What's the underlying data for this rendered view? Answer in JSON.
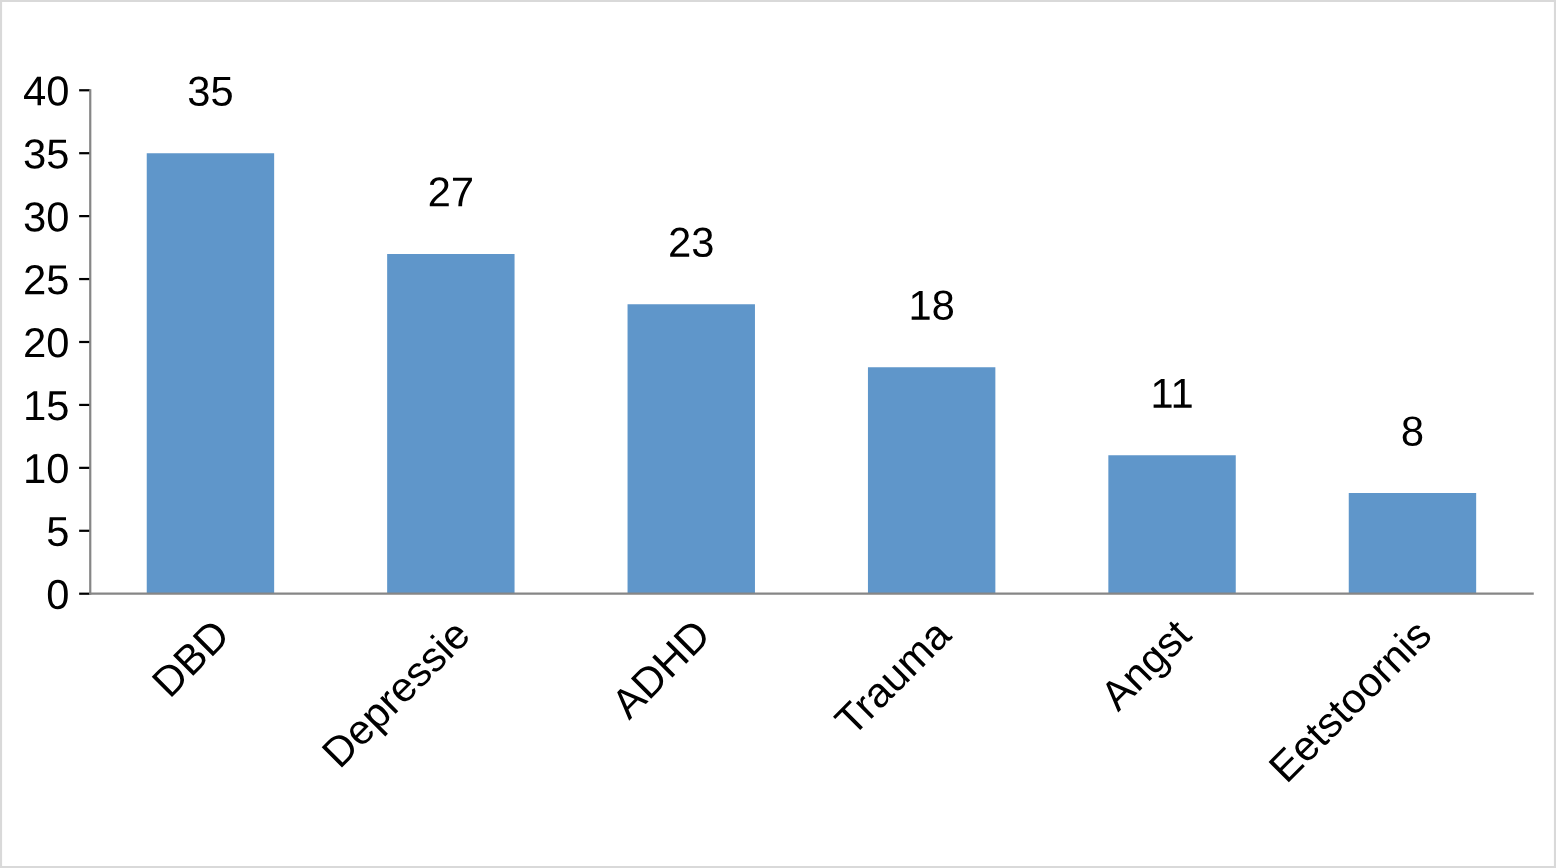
{
  "chart_data": {
    "type": "bar",
    "categories": [
      "DBD",
      "Depressie",
      "ADHD",
      "Trauma",
      "Angst",
      "Eetstoornis"
    ],
    "values": [
      35,
      27,
      23,
      18,
      11,
      8
    ],
    "color": "#5f96ca",
    "ylim": [
      0,
      40
    ],
    "yticks": [
      0,
      5,
      10,
      15,
      20,
      25,
      30,
      35,
      40
    ],
    "grid": false,
    "data_labels": true
  }
}
